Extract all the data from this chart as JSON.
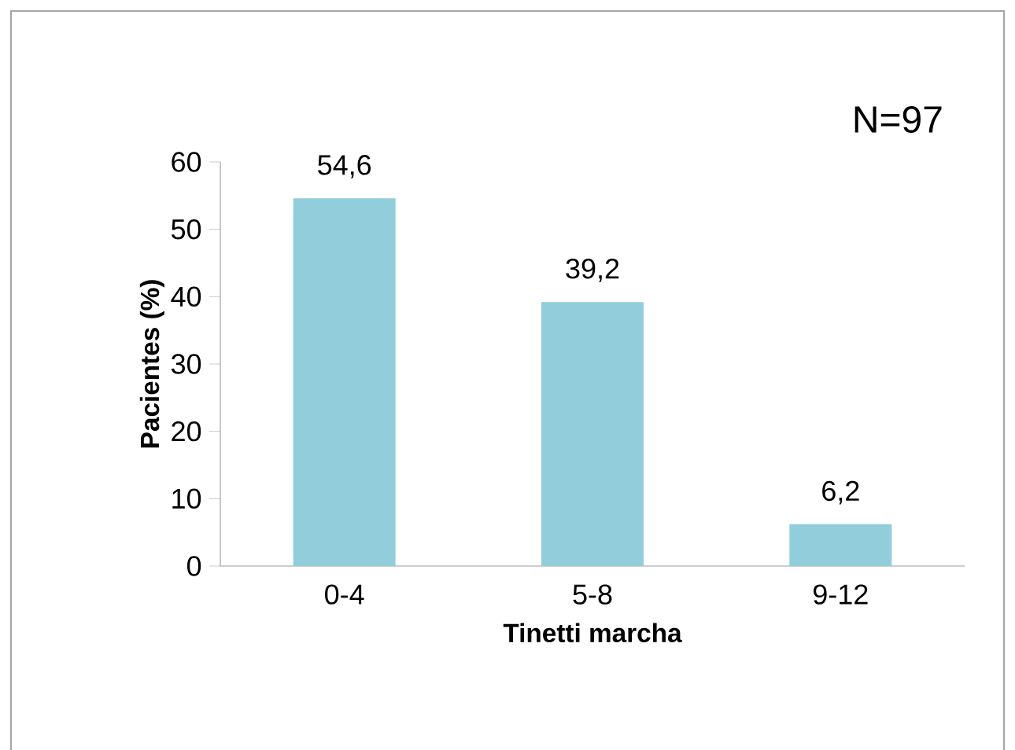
{
  "chart_data": {
    "type": "bar",
    "xlabel": "Tinetti marcha",
    "ylabel": "Pacientes (%)",
    "categories": [
      "0-4",
      "5-8",
      "9-12"
    ],
    "values": [
      54.6,
      39.2,
      6.2
    ],
    "value_labels": [
      "54,6",
      "39,2",
      "6,2"
    ],
    "color": "#92cddc",
    "ylim": [
      0,
      60
    ],
    "yticks": [
      0,
      10,
      20,
      30,
      40,
      50,
      60
    ],
    "grid": false,
    "annotations": [
      "N=97"
    ]
  }
}
